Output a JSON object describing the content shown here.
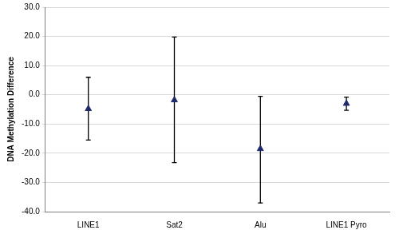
{
  "chart_data": {
    "type": "scatter",
    "y_label": "DNA Methylation Difference",
    "categories": [
      "LINE1",
      "Sat2",
      "Alu",
      "LINE1 Pyro"
    ],
    "values": [
      -4.8,
      -1.8,
      -18.5,
      -3.0
    ],
    "error_lower": [
      -15.5,
      -23.2,
      -37.0,
      -5.3
    ],
    "error_upper": [
      6.0,
      19.8,
      -0.5,
      -0.8
    ],
    "color": "#1f2a6b",
    "marker": "triangle",
    "ylim": [
      -40,
      30
    ],
    "yticks": [
      {
        "value": -40,
        "label": "-40.0"
      },
      {
        "value": -30,
        "label": "-30.0"
      },
      {
        "value": -20,
        "label": "-20.0"
      },
      {
        "value": -10,
        "label": "-10.0"
      },
      {
        "value": 0,
        "label": "0.0"
      },
      {
        "value": 10,
        "label": "10.0"
      },
      {
        "value": 20,
        "label": "20.0"
      },
      {
        "value": 30,
        "label": "30.0"
      }
    ],
    "grid": true
  }
}
